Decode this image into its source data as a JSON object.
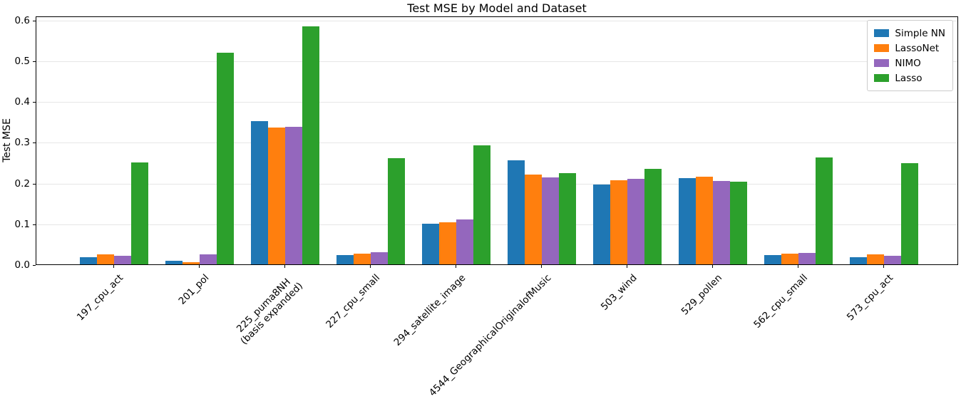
{
  "chart_data": {
    "type": "bar",
    "title": "Test MSE by Model and Dataset",
    "xlabel": "",
    "ylabel": "Test MSE",
    "ylim": [
      0,
      0.61
    ],
    "yticks": [
      "0.0",
      "0.1",
      "0.2",
      "0.3",
      "0.4",
      "0.5",
      "0.6"
    ],
    "grid": true,
    "legend_position": "upper right",
    "categories": [
      "197_cpu_act",
      "201_pol",
      "225_puma8NH\n(basis expanded)",
      "227_cpu_small",
      "294_satellite_image",
      "4544_GeographicalOriginalofMusic",
      "503_wind",
      "529_pollen",
      "562_cpu_small",
      "573_cpu_act"
    ],
    "series": [
      {
        "name": "Simple NN",
        "color": "#1f77b4",
        "values": [
          0.018,
          0.008,
          0.351,
          0.023,
          0.099,
          0.255,
          0.196,
          0.212,
          0.022,
          0.017
        ]
      },
      {
        "name": "LassoNet",
        "color": "#ff7f0e",
        "values": [
          0.025,
          0.006,
          0.335,
          0.027,
          0.104,
          0.22,
          0.206,
          0.215,
          0.026,
          0.024
        ]
      },
      {
        "name": "NIMO",
        "color": "#9467bd",
        "values": [
          0.021,
          0.025,
          0.337,
          0.029,
          0.11,
          0.214,
          0.209,
          0.205,
          0.028,
          0.021
        ]
      },
      {
        "name": "Lasso",
        "color": "#2ca02c",
        "values": [
          0.25,
          0.519,
          0.583,
          0.261,
          0.292,
          0.223,
          0.234,
          0.203,
          0.262,
          0.249
        ]
      }
    ]
  }
}
